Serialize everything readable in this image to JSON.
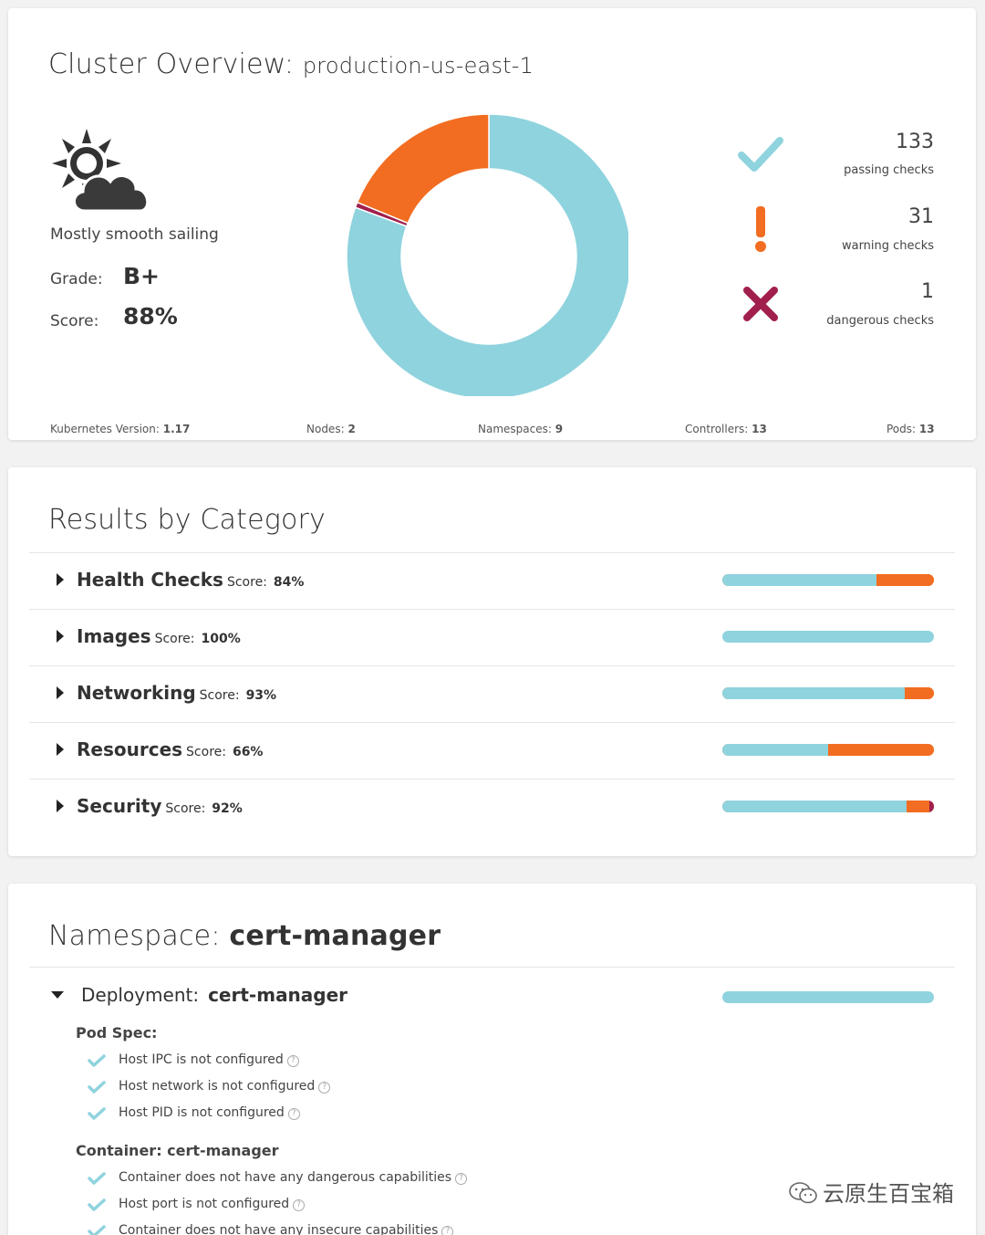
{
  "overview": {
    "title": "Cluster Overview:",
    "cluster_name": "production-us-east-1",
    "weather_icon": "partly-cloudy-icon",
    "status_text": "Mostly smooth sailing",
    "grade_label": "Grade:",
    "grade_value": "B+",
    "score_label": "Score:",
    "score_value": "88%",
    "checks": {
      "passing": {
        "count": "133",
        "label": "passing checks",
        "icon": "checkmark-icon",
        "color": "#8fd3de"
      },
      "warning": {
        "count": "31",
        "label": "warning checks",
        "icon": "exclamation-icon",
        "color": "#f26d21"
      },
      "dangerous": {
        "count": "1",
        "label": "dangerous checks",
        "icon": "x-icon",
        "color": "#a11f4c"
      }
    },
    "donut": {
      "passing": 133,
      "warning": 31,
      "dangerous": 1
    },
    "stats": {
      "k8s_label": "Kubernetes Version:",
      "k8s_value": "1.17",
      "nodes_label": "Nodes:",
      "nodes_value": "2",
      "namespaces_label": "Namespaces:",
      "namespaces_value": "9",
      "controllers_label": "Controllers:",
      "controllers_value": "13",
      "pods_label": "Pods:",
      "pods_value": "13"
    }
  },
  "results": {
    "title": "Results by Category",
    "categories": [
      {
        "name": "Health Checks",
        "score_label": "Score:",
        "score": "84%",
        "pass": 0.73,
        "warn": 0.27,
        "danger": 0
      },
      {
        "name": "Images",
        "score_label": "Score:",
        "score": "100%",
        "pass": 1.0,
        "warn": 0,
        "danger": 0
      },
      {
        "name": "Networking",
        "score_label": "Score:",
        "score": "93%",
        "pass": 0.86,
        "warn": 0.14,
        "danger": 0
      },
      {
        "name": "Resources",
        "score_label": "Score:",
        "score": "66%",
        "pass": 0.5,
        "warn": 0.5,
        "danger": 0
      },
      {
        "name": "Security",
        "score_label": "Score:",
        "score": "92%",
        "pass": 0.87,
        "warn": 0.11,
        "danger": 0.02
      }
    ]
  },
  "namespace": {
    "title_prefix": "Namespace:",
    "name": "cert-manager",
    "deployment_label": "Deployment:",
    "deployment_name": "cert-manager",
    "pod_spec_label": "Pod Spec:",
    "pod_checks": [
      "Host IPC is not configured",
      "Host network is not configured",
      "Host PID is not configured"
    ],
    "container_label": "Container: cert-manager",
    "container_checks": [
      "Container does not have any dangerous capabilities",
      "Host port is not configured",
      "Container does not have any insecure capabilities"
    ]
  },
  "watermark": "云原生百宝箱"
}
